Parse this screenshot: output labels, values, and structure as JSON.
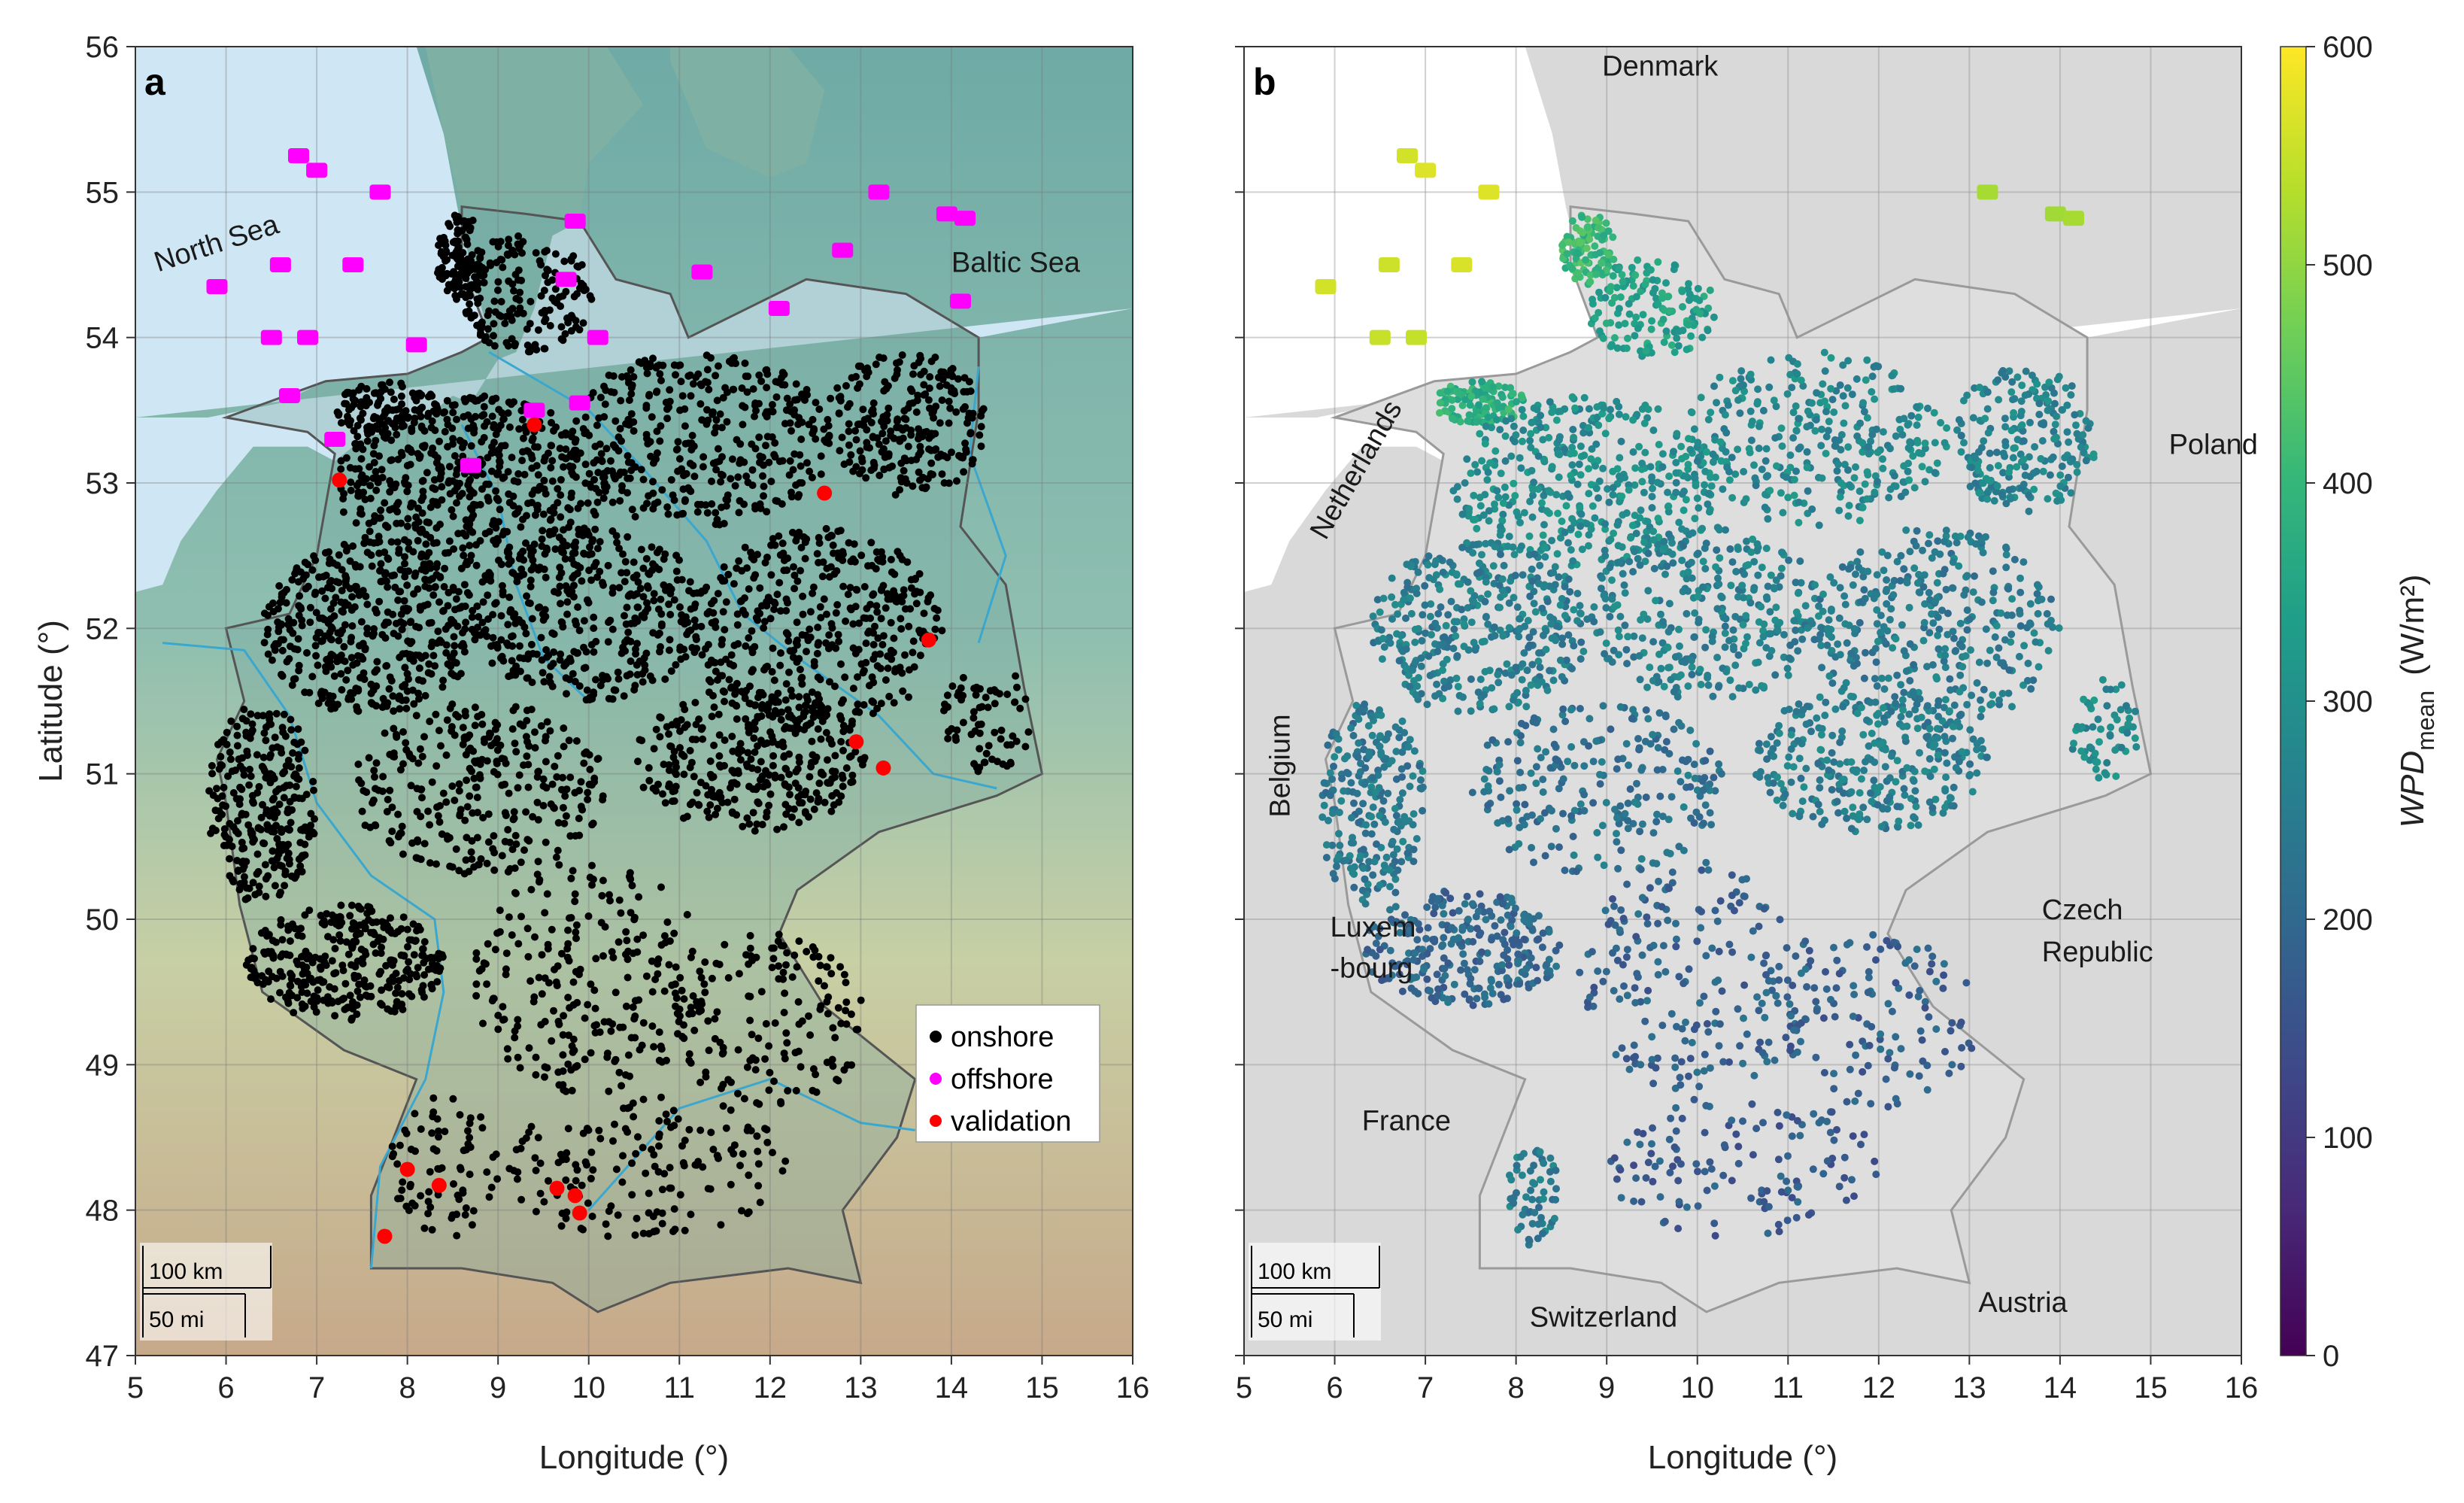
{
  "chart_data": [
    {
      "type": "scatter",
      "panel": "a",
      "xlabel": "Longitude (°)",
      "ylabel": "Latitude (°)",
      "xlim": [
        5,
        16
      ],
      "ylim": [
        47,
        56
      ],
      "x_ticks": [
        "5",
        "6",
        "7",
        "8",
        "9",
        "10",
        "11",
        "12",
        "13",
        "14",
        "15",
        "16"
      ],
      "y_ticks": [
        "47",
        "48",
        "49",
        "50",
        "51",
        "52",
        "53",
        "54",
        "55",
        "56"
      ],
      "labels": [
        {
          "text": "North Sea",
          "lon": 5.25,
          "lat": 54.45,
          "rotate": -18
        },
        {
          "text": "Baltic Sea",
          "lon": 14.0,
          "lat": 54.45,
          "rotate": 0
        }
      ],
      "legend": {
        "position": "lower-right",
        "entries": [
          {
            "label": "onshore",
            "color": "#000000"
          },
          {
            "label": "offshore",
            "color": "#ff00ff"
          },
          {
            "label": "validation",
            "color": "#ff0000"
          }
        ]
      },
      "scalebar": {
        "km": "100 km",
        "mi": "50 mi"
      },
      "series": [
        {
          "name": "validation",
          "color": "#ff0000",
          "points": [
            [
              9.4,
              53.4
            ],
            [
              7.25,
              53.02
            ],
            [
              12.6,
              52.93
            ],
            [
              13.75,
              51.92
            ],
            [
              12.95,
              51.22
            ],
            [
              13.25,
              51.04
            ],
            [
              8.0,
              48.28
            ],
            [
              8.35,
              48.17
            ],
            [
              7.75,
              47.82
            ],
            [
              9.65,
              48.15
            ],
            [
              9.85,
              48.1
            ],
            [
              9.9,
              47.98
            ]
          ]
        },
        {
          "name": "offshore",
          "color": "#ff00ff",
          "points": [
            [
              6.8,
              55.25
            ],
            [
              7.0,
              55.15
            ],
            [
              7.7,
              55.0
            ],
            [
              6.6,
              54.5
            ],
            [
              5.9,
              54.35
            ],
            [
              7.4,
              54.5
            ],
            [
              6.5,
              54.0
            ],
            [
              6.9,
              54.0
            ],
            [
              13.2,
              55.0
            ],
            [
              13.95,
              54.85
            ],
            [
              14.15,
              54.82
            ],
            [
              9.85,
              54.8
            ],
            [
              9.75,
              54.4
            ],
            [
              11.25,
              54.45
            ],
            [
              12.8,
              54.6
            ],
            [
              14.1,
              54.25
            ],
            [
              6.7,
              53.6
            ],
            [
              9.4,
              53.5
            ],
            [
              9.9,
              53.55
            ],
            [
              7.2,
              53.3
            ],
            [
              8.7,
              53.12
            ],
            [
              12.1,
              54.2
            ],
            [
              8.1,
              53.95
            ],
            [
              10.1,
              54.0
            ]
          ]
        },
        {
          "name": "onshore",
          "color": "#000000",
          "clusters": [
            {
              "lon": 7.8,
              "lat": 53.5,
              "rlon": 0.6,
              "rlat": 0.2,
              "n": 110
            },
            {
              "lon": 8.6,
              "lat": 54.55,
              "rlon": 0.3,
              "rlat": 0.3,
              "n": 110
            },
            {
              "lon": 9.3,
              "lat": 54.3,
              "rlon": 0.8,
              "rlat": 0.4,
              "n": 170
            },
            {
              "lon": 8.7,
              "lat": 53.0,
              "rlon": 1.5,
              "rlat": 0.6,
              "n": 520
            },
            {
              "lon": 11.2,
              "lat": 53.3,
              "rlon": 1.5,
              "rlat": 0.6,
              "n": 380
            },
            {
              "lon": 13.5,
              "lat": 53.4,
              "rlon": 0.9,
              "rlat": 0.5,
              "n": 250
            },
            {
              "lon": 7.6,
              "lat": 52.0,
              "rlon": 1.2,
              "rlat": 0.6,
              "n": 440
            },
            {
              "lon": 10.0,
              "lat": 52.1,
              "rlon": 1.3,
              "rlat": 0.6,
              "n": 380
            },
            {
              "lon": 12.5,
              "lat": 52.0,
              "rlon": 1.4,
              "rlat": 0.7,
              "n": 420
            },
            {
              "lon": 6.4,
              "lat": 50.8,
              "rlon": 0.6,
              "rlat": 0.7,
              "n": 280
            },
            {
              "lon": 8.8,
              "lat": 50.9,
              "rlon": 1.4,
              "rlat": 0.6,
              "n": 300
            },
            {
              "lon": 11.8,
              "lat": 51.1,
              "rlon": 1.3,
              "rlat": 0.5,
              "n": 330
            },
            {
              "lon": 14.4,
              "lat": 51.4,
              "rlon": 0.5,
              "rlat": 0.4,
              "n": 70
            },
            {
              "lon": 7.3,
              "lat": 49.7,
              "rlon": 1.1,
              "rlat": 0.4,
              "n": 320
            },
            {
              "lon": 10.0,
              "lat": 49.6,
              "rlon": 1.3,
              "rlat": 0.8,
              "n": 240
            },
            {
              "lon": 12.0,
              "lat": 49.3,
              "rlon": 1.1,
              "rlat": 0.6,
              "n": 150
            },
            {
              "lon": 8.4,
              "lat": 48.3,
              "rlon": 0.6,
              "rlat": 0.5,
              "n": 80
            },
            {
              "lon": 10.6,
              "lat": 48.3,
              "rlon": 1.6,
              "rlat": 0.5,
              "n": 160
            }
          ]
        }
      ]
    },
    {
      "type": "scatter",
      "panel": "b",
      "xlabel": "Longitude (°)",
      "xlim": [
        5,
        16
      ],
      "ylim": [
        47,
        56
      ],
      "x_ticks": [
        "5",
        "6",
        "7",
        "8",
        "9",
        "10",
        "11",
        "12",
        "13",
        "14",
        "15",
        "16"
      ],
      "labels": [
        {
          "text": "Denmark",
          "lon": 8.95,
          "lat": 55.8,
          "rotate": 0
        },
        {
          "text": "Poland",
          "lon": 15.2,
          "lat": 53.2,
          "rotate": 0
        },
        {
          "text": "Netherlands",
          "lon": 5.9,
          "lat": 52.6,
          "rotate": -60
        },
        {
          "text": "Belgium",
          "lon": 5.5,
          "lat": 50.7,
          "rotate": -90
        },
        {
          "text": "Luxem",
          "lon": 5.95,
          "lat": 49.88,
          "rotate": 0,
          "size": 28
        },
        {
          "text": "-bourg",
          "lon": 5.95,
          "lat": 49.6,
          "rotate": 0,
          "size": 28
        },
        {
          "text": "France",
          "lon": 6.3,
          "lat": 48.55,
          "rotate": 0
        },
        {
          "text": "Switzerland",
          "lon": 8.15,
          "lat": 47.2,
          "rotate": 0
        },
        {
          "text": "Austria",
          "lon": 13.1,
          "lat": 47.3,
          "rotate": 0
        },
        {
          "text": "Czech",
          "lon": 13.8,
          "lat": 50.0,
          "rotate": 0
        },
        {
          "text": "Republic",
          "lon": 13.8,
          "lat": 49.71,
          "rotate": 0
        }
      ],
      "scalebar": {
        "km": "100 km",
        "mi": "50 mi"
      },
      "colorbar": {
        "label_main": "WPD",
        "label_sub": "mean",
        "label_unit": "(W/m²)",
        "range": [
          0,
          600
        ],
        "ticks": [
          "0",
          "100",
          "200",
          "300",
          "400",
          "500",
          "600"
        ],
        "colormap": "viridis"
      },
      "series": [
        {
          "name": "offshore",
          "points": [
            [
              6.8,
              55.25,
              560
            ],
            [
              7.0,
              55.15,
              570
            ],
            [
              7.7,
              55.0,
              570
            ],
            [
              6.6,
              54.5,
              555
            ],
            [
              5.9,
              54.35,
              560
            ],
            [
              7.4,
              54.5,
              565
            ],
            [
              6.5,
              54.0,
              550
            ],
            [
              6.9,
              54.0,
              548
            ],
            [
              13.2,
              55.0,
              520
            ],
            [
              13.95,
              54.85,
              515
            ],
            [
              14.15,
              54.82,
              520
            ]
          ]
        },
        {
          "name": "onshore",
          "clusters": [
            {
              "lon": 7.6,
              "lat": 53.55,
              "rlon": 0.5,
              "rlat": 0.15,
              "n": 120,
              "wpd": 380
            },
            {
              "lon": 8.8,
              "lat": 54.6,
              "rlon": 0.3,
              "rlat": 0.25,
              "n": 110,
              "wpd": 400
            },
            {
              "lon": 9.5,
              "lat": 54.2,
              "rlon": 0.7,
              "rlat": 0.35,
              "n": 150,
              "wpd": 340
            },
            {
              "lon": 8.8,
              "lat": 53.0,
              "rlon": 1.5,
              "rlat": 0.6,
              "n": 420,
              "wpd": 290
            },
            {
              "lon": 11.3,
              "lat": 53.3,
              "rlon": 1.5,
              "rlat": 0.6,
              "n": 320,
              "wpd": 280
            },
            {
              "lon": 13.6,
              "lat": 53.3,
              "rlon": 0.8,
              "rlat": 0.5,
              "n": 220,
              "wpd": 270
            },
            {
              "lon": 7.6,
              "lat": 52.0,
              "rlon": 1.2,
              "rlat": 0.6,
              "n": 380,
              "wpd": 255
            },
            {
              "lon": 10.1,
              "lat": 52.1,
              "rlon": 1.3,
              "rlat": 0.6,
              "n": 320,
              "wpd": 260
            },
            {
              "lon": 12.6,
              "lat": 52.0,
              "rlon": 1.4,
              "rlat": 0.7,
              "n": 360,
              "wpd": 250
            },
            {
              "lon": 6.4,
              "lat": 50.8,
              "rlon": 0.6,
              "rlat": 0.7,
              "n": 240,
              "wpd": 240
            },
            {
              "lon": 8.9,
              "lat": 50.9,
              "rlon": 1.4,
              "rlat": 0.6,
              "n": 240,
              "wpd": 225
            },
            {
              "lon": 11.9,
              "lat": 51.1,
              "rlon": 1.3,
              "rlat": 0.5,
              "n": 300,
              "wpd": 255
            },
            {
              "lon": 14.5,
              "lat": 51.3,
              "rlon": 0.4,
              "rlat": 0.35,
              "n": 60,
              "wpd": 285
            },
            {
              "lon": 7.4,
              "lat": 49.8,
              "rlon": 1.1,
              "rlat": 0.4,
              "n": 280,
              "wpd": 200
            },
            {
              "lon": 10.0,
              "lat": 49.6,
              "rlon": 1.3,
              "rlat": 0.8,
              "n": 210,
              "wpd": 190
            },
            {
              "lon": 12.0,
              "lat": 49.3,
              "rlon": 1.1,
              "rlat": 0.6,
              "n": 120,
              "wpd": 185
            },
            {
              "lon": 8.2,
              "lat": 48.1,
              "rlon": 0.3,
              "rlat": 0.35,
              "n": 60,
              "wpd": 250
            },
            {
              "lon": 10.5,
              "lat": 48.3,
              "rlon": 1.5,
              "rlat": 0.5,
              "n": 130,
              "wpd": 175
            }
          ]
        }
      ]
    }
  ]
}
